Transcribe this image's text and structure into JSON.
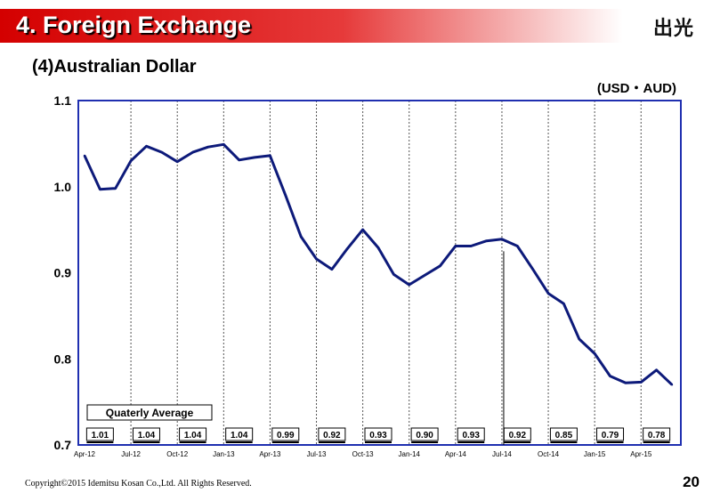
{
  "header": {
    "title": "4. Foreign Exchange",
    "logo_text": "出光"
  },
  "subtitle": "(4)Australian Dollar",
  "unit_label": "(USD・AUD)",
  "footer": {
    "copyright": "Copyright©2015 Idemitsu Kosan Co.,Ltd. All Rights Reserved.",
    "page_number": "20"
  },
  "colors": {
    "line": "#0d1a7a",
    "frame": "#1f2fb0",
    "title_band": "#d40000"
  },
  "chart_data": {
    "type": "line",
    "title": "",
    "xlabel": "",
    "ylabel": "",
    "ylim": [
      0.7,
      1.1
    ],
    "yticks": [
      "0.7",
      "0.8",
      "0.9",
      "1.0",
      "1.1"
    ],
    "x_tick_labels": [
      "Apr-12",
      "Jul-12",
      "Oct-12",
      "Jan-13",
      "Apr-13",
      "Jul-13",
      "Oct-13",
      "Jan-14",
      "Apr-14",
      "Jul-14",
      "Oct-14",
      "Jan-15",
      "Apr-15"
    ],
    "x": [
      "Apr-12",
      "May-12",
      "Jun-12",
      "Jul-12",
      "Aug-12",
      "Sep-12",
      "Oct-12",
      "Nov-12",
      "Dec-12",
      "Jan-13",
      "Feb-13",
      "Mar-13",
      "Apr-13",
      "May-13",
      "Jun-13",
      "Jul-13",
      "Aug-13",
      "Sep-13",
      "Oct-13",
      "Nov-13",
      "Dec-13",
      "Jan-14",
      "Feb-14",
      "Mar-14",
      "Apr-14",
      "May-14",
      "Jun-14",
      "Jul-14",
      "Aug-14",
      "Sep-14",
      "Oct-14",
      "Nov-14",
      "Dec-14",
      "Jan-15",
      "Feb-15",
      "Mar-15",
      "Apr-15",
      "May-15",
      "Jun-15"
    ],
    "values": [
      1.036,
      0.997,
      0.998,
      1.03,
      1.047,
      1.04,
      1.029,
      1.04,
      1.046,
      1.049,
      1.031,
      1.034,
      1.036,
      0.99,
      0.942,
      0.916,
      0.904,
      0.928,
      0.95,
      0.929,
      0.898,
      0.886,
      0.897,
      0.908,
      0.931,
      0.931,
      0.937,
      0.939,
      0.931,
      0.904,
      0.876,
      0.864,
      0.823,
      0.806,
      0.78,
      0.772,
      0.773,
      0.787,
      0.77
    ],
    "legend": {
      "label": "Quaterly Average",
      "position": "bottom-left"
    },
    "quarterly_averages": [
      "1.01",
      "1.04",
      "1.04",
      "1.04",
      "0.99",
      "0.92",
      "0.93",
      "0.90",
      "0.93",
      "0.92",
      "0.85",
      "0.79",
      "0.78"
    ],
    "grid": {
      "vertical_dashed": true,
      "horizontal": false
    }
  }
}
